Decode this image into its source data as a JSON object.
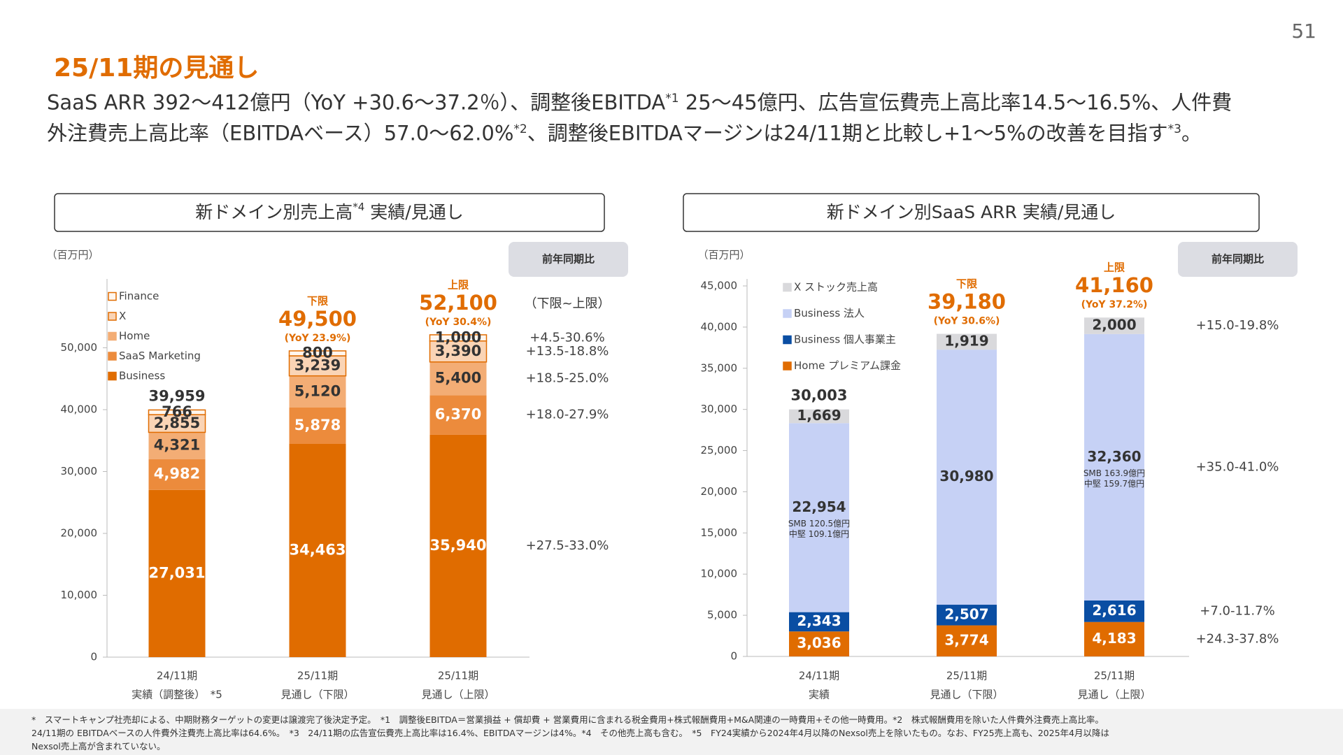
{
  "page_number": "51",
  "title": "25/11期の見通し",
  "summary": [
    [
      {
        "text": "SaaS ARR 392～412億円（YoY +30.6～37.2％）、調整後EBITDA"
      },
      {
        "sup": "*1"
      },
      {
        "text": " 25～45億円、広告宣伝費売上高比率14.5～16.5%、人件費"
      }
    ],
    [
      {
        "text": "外注費売上高比率（EBITDAベース）57.0～62.0%"
      },
      {
        "sup": "*2"
      },
      {
        "text": "、調整後EBITDAマージンは24/11期と比較し+1～5%の改善を目指す"
      },
      {
        "sup": "*3"
      },
      {
        "text": "。"
      }
    ]
  ],
  "chart_data": [
    {
      "type": "bar",
      "stacked": true,
      "title": [
        {
          "text": "新ドメイン別売上高"
        },
        {
          "sup": "*4"
        },
        {
          "text": " 実績/見通し"
        }
      ],
      "unit_label": "（百万円）",
      "categories": [
        [
          "24/11期",
          "実績（調整後）　*5"
        ],
        [
          "25/11期",
          "見通し（下限）"
        ],
        [
          "25/11期",
          "見通し（上限）"
        ]
      ],
      "series": [
        {
          "name": "Business",
          "color": "#e06c00",
          "label_color": "#ffffff",
          "values": [
            27031,
            34463,
            35940
          ],
          "value_labels": [
            "27,031",
            "34,463",
            "35,940"
          ]
        },
        {
          "name": "SaaS Marketing",
          "color": "#ec8b3c",
          "label_color": "#ffffff",
          "values": [
            4982,
            5878,
            6370
          ],
          "value_labels": [
            "4,982",
            "5,878",
            "6,370"
          ]
        },
        {
          "name": "Home",
          "color": "#f3ad75",
          "label_color": "#333333",
          "values": [
            4321,
            5120,
            5400
          ],
          "value_labels": [
            "4,321",
            "5,120",
            "5,400"
          ]
        },
        {
          "name": "X",
          "color": "#fad4b5",
          "stroke": "#e06c00",
          "label_color": "#333333",
          "values": [
            2855,
            3239,
            3390
          ],
          "value_labels": [
            "2,855",
            "3,239",
            "3,390"
          ]
        },
        {
          "name": "Finance",
          "color": "#fff6ee",
          "stroke": "#e06c00",
          "label_color": "#333333",
          "values": [
            766,
            800,
            1000
          ],
          "value_labels": [
            "766",
            "800",
            "1,000"
          ]
        }
      ],
      "totals": [
        39959,
        49500,
        52100
      ],
      "total_labels": [
        "39,959",
        "49,500",
        "52,100"
      ],
      "total_notes": [
        null,
        "下限",
        "上限"
      ],
      "total_yoy": [
        null,
        "(YoY 23.9%)",
        "(YoY 30.4%)"
      ],
      "ylim": [
        0,
        60000
      ],
      "yticks": [
        0,
        {
          "value": 10000,
          "label": "10,000"
        },
        {
          "value": 20000,
          "label": "20,000"
        },
        {
          "value": 30000,
          "label": "30,000"
        },
        {
          "value": 40000,
          "label": "40,000"
        },
        {
          "value": 50000,
          "label": "50,000"
        }
      ],
      "legend": "upper left",
      "yoy_header": "前年同期比",
      "yoy_subheader": "（下限~上限）",
      "yoy_ranges": [
        "+27.5-33.0%",
        "+18.0-27.9%",
        "+18.5-25.0%",
        "+13.5-18.8%",
        "+4.5-30.6%"
      ]
    },
    {
      "type": "bar",
      "stacked": true,
      "title": [
        {
          "text": "新ドメイン別SaaS ARR 実績/見通し"
        }
      ],
      "unit_label": "（百万円）",
      "categories": [
        [
          "24/11期",
          "実績"
        ],
        [
          "25/11期",
          "見通し（下限）"
        ],
        [
          "25/11期",
          "見通し（上限）"
        ]
      ],
      "series": [
        {
          "name": "Home プレミアム課金",
          "color": "#e06c00",
          "label_color": "#ffffff",
          "values": [
            3036,
            3774,
            4183
          ],
          "value_labels": [
            "3,036",
            "3,774",
            "4,183"
          ]
        },
        {
          "name": "Business 個人事業主",
          "color": "#0a4ea3",
          "label_color": "#ffffff",
          "values": [
            2343,
            2507,
            2616
          ],
          "value_labels": [
            "2,343",
            "2,507",
            "2,616"
          ]
        },
        {
          "name": "Business 法人",
          "color": "#c6d1f5",
          "label_color": "#333333",
          "values": [
            22954,
            30980,
            32360
          ],
          "value_labels": [
            "22,954",
            "30,980",
            "32,360"
          ],
          "notes": [
            [
              "SMB 120.5億円",
              "中堅 109.1億円"
            ],
            null,
            [
              "SMB 163.9億円",
              "中堅 159.7億円"
            ]
          ]
        },
        {
          "name": "X ストック売上高",
          "color": "#d9d9dc",
          "label_color": "#333333",
          "values": [
            1669,
            1919,
            2000
          ],
          "value_labels": [
            "1,669",
            "1,919",
            "2,000"
          ]
        }
      ],
      "totals": [
        30003,
        39180,
        41160
      ],
      "total_labels": [
        "30,003",
        "39,180",
        "41,160"
      ],
      "total_notes": [
        null,
        "下限",
        "上限"
      ],
      "total_yoy": [
        null,
        "(YoY 30.6%)",
        "(YoY 37.2%)"
      ],
      "ylim": [
        0,
        45000
      ],
      "yticks": [
        0,
        {
          "value": 5000,
          "label": "5,000"
        },
        {
          "value": 10000,
          "label": "10,000"
        },
        {
          "value": 15000,
          "label": "15,000"
        },
        {
          "value": 20000,
          "label": "20,000"
        },
        {
          "value": 25000,
          "label": "25,000"
        },
        {
          "value": 30000,
          "label": "30,000"
        },
        {
          "value": 35000,
          "label": "35,000"
        },
        {
          "value": 40000,
          "label": "40,000"
        },
        {
          "value": 45000,
          "label": "45,000"
        }
      ],
      "legend": "upper left",
      "yoy_header": "前年同期比",
      "yoy_ranges": [
        "+24.3-37.8%",
        "+7.0-11.7%",
        "+35.0-41.0%",
        "+15.0-19.8%"
      ]
    }
  ],
  "footnotes": [
    "*　スマートキャンプ社売却による、中期財務ターゲットの変更は譲渡完了後決定予定。　*1　調整後EBITDA＝営業損益 + 償却費 + 営業費用に含まれる税金費用+株式報酬費用+M&A関連の一時費用+その他一時費用。*2　株式報酬費用を除いた人件費外注費売上高比率。",
    "24/11期の EBITDAベースの人件費外注費売上高比率は64.6%。　*3　24/11期の広告宣伝費売上高比率は16.4%、EBITDAマージンは4%。*4　その他売上高も含む。　*5　FY24実績から2024年4月以降のNexsol売上を除いたもの。なお、FY25売上高も、2025年4月以降は",
    "Nexsol売上高が含まれていない。"
  ]
}
